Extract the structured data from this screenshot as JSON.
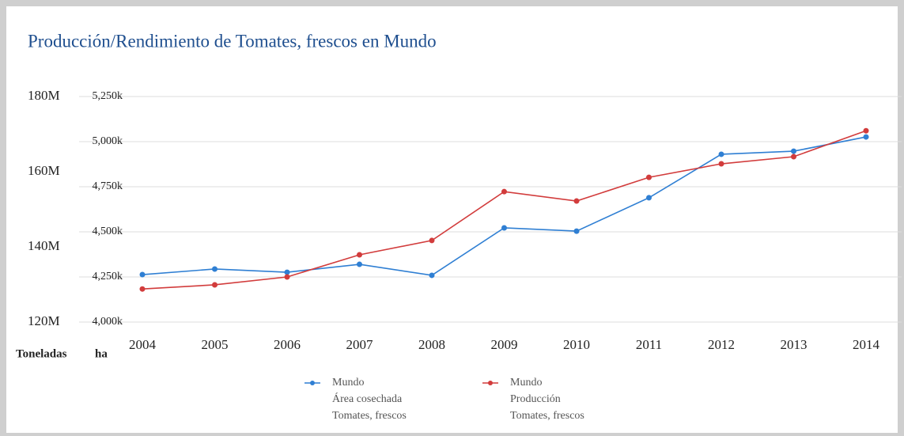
{
  "chart_data": {
    "type": "line",
    "title": "Producción/Rendimiento de Tomates, frescos en Mundo",
    "y_label": "Toneladas",
    "y2_label": "ha",
    "x": [
      "2004",
      "2005",
      "2006",
      "2007",
      "2008",
      "2009",
      "2010",
      "2011",
      "2012",
      "2013",
      "2014"
    ],
    "ylim": [
      120000000,
      180000000
    ],
    "yticks": [
      {
        "value": 120000000,
        "label": "120M"
      },
      {
        "value": 140000000,
        "label": "140M"
      },
      {
        "value": 160000000,
        "label": "160M"
      },
      {
        "value": 180000000,
        "label": "180M"
      }
    ],
    "y2lim": [
      4000000,
      5250000
    ],
    "y2ticks": [
      {
        "value": 4000000,
        "label": "4,000k"
      },
      {
        "value": 4250000,
        "label": "4,250k"
      },
      {
        "value": 4500000,
        "label": "4,500k"
      },
      {
        "value": 4750000,
        "label": "4,750k"
      },
      {
        "value": 5000000,
        "label": "5,000k"
      },
      {
        "value": 5250000,
        "label": "5,250k"
      }
    ],
    "grid": true,
    "series": [
      {
        "name": [
          "Mundo",
          "Área cosechada",
          "Tomates, frescos"
        ],
        "color": "#2f7fd3",
        "axis": "y2",
        "values": [
          4263000,
          4294000,
          4276000,
          4320000,
          4259000,
          4522000,
          4504000,
          4689000,
          4930000,
          4947000,
          5026000
        ]
      },
      {
        "name": [
          "Mundo",
          "Producción",
          "Tomates, frescos"
        ],
        "color": "#d23c3c",
        "axis": "y",
        "values": [
          128800000,
          129900000,
          132000000,
          137900000,
          141700000,
          154700000,
          152200000,
          158500000,
          162100000,
          164000000,
          170900000
        ]
      }
    ]
  }
}
